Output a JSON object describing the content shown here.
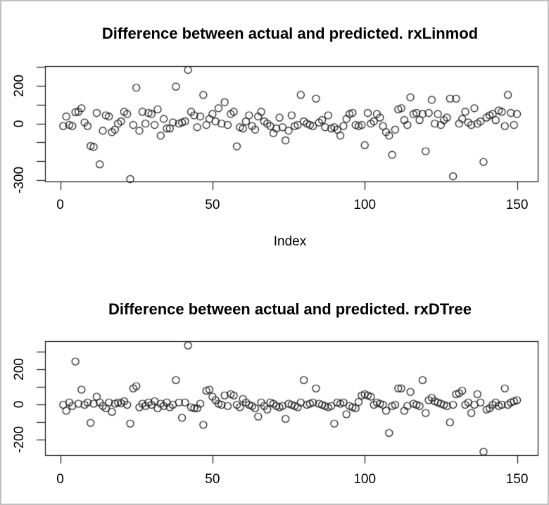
{
  "frame": {
    "background": "#ffffff",
    "border_color": "#c0c0c0",
    "marker_color": "#111111",
    "axis_color": "#000000"
  },
  "chart_data": [
    {
      "type": "scatter",
      "title": "Difference between actual and predicted. rxLinmod",
      "xlabel": "Index",
      "ylabel": "",
      "marker": "open-circle",
      "grid": false,
      "x_note": "x is the observation index 1..150 (array position + 1)",
      "x_ticks": [
        0,
        50,
        100,
        150
      ],
      "y_ticks": [
        300,
        200,
        100,
        0,
        -100,
        -200,
        -300
      ],
      "y_tick_labels_shown": [
        200,
        0,
        -300
      ],
      "xlim": [
        -5,
        157
      ],
      "ylim": [
        -310,
        305
      ],
      "values": [
        -14,
        37,
        -8,
        -14,
        60,
        62,
        81,
        5,
        -14,
        -120,
        -125,
        56,
        -218,
        -39,
        43,
        37,
        -46,
        -33,
        -1,
        11,
        62,
        50,
        -296,
        -8,
        190,
        -39,
        62,
        -1,
        56,
        50,
        -8,
        75,
        -65,
        24,
        -27,
        -27,
        5,
        196,
        -1,
        5,
        11,
        285,
        62,
        43,
        -20,
        37,
        152,
        -8,
        24,
        50,
        11,
        81,
        -1,
        113,
        -8,
        50,
        62,
        -122,
        -20,
        -27,
        11,
        43,
        -14,
        -33,
        37,
        62,
        11,
        -1,
        -14,
        -52,
        -27,
        31,
        -20,
        -90,
        -39,
        43,
        -14,
        -8,
        152,
        11,
        -1,
        -8,
        -14,
        132,
        5,
        18,
        -20,
        43,
        -27,
        -20,
        -33,
        -65,
        -14,
        24,
        50,
        56,
        -8,
        -14,
        -8,
        -116,
        56,
        -1,
        11,
        50,
        31,
        -14,
        -46,
        -65,
        -167,
        -33,
        75,
        81,
        18,
        -8,
        139,
        50,
        56,
        18,
        50,
        -148,
        56,
        126,
        -1,
        50,
        -8,
        18,
        31,
        132,
        -281,
        132,
        -1,
        24,
        62,
        5,
        -8,
        81,
        -1,
        11,
        -205,
        31,
        43,
        50,
        18,
        69,
        62,
        -14,
        152,
        56,
        -8,
        50
      ]
    },
    {
      "type": "scatter",
      "title": "Difference between actual and predicted. rxDTree",
      "xlabel": "",
      "ylabel": "",
      "marker": "open-circle",
      "grid": false,
      "x_note": "x is the observation index 1..150 (array position + 1)",
      "x_ticks": [
        0,
        50,
        100,
        150
      ],
      "y_ticks": [
        300,
        200,
        100,
        0,
        -100,
        -200
      ],
      "y_tick_labels_shown": [
        200,
        0,
        -200
      ],
      "xlim": [
        -5,
        157
      ],
      "ylim": [
        -290,
        360
      ],
      "values": [
        -2,
        -36,
        11,
        -9,
        244,
        4,
        84,
        -2,
        11,
        -105,
        4,
        44,
        11,
        -9,
        -22,
        11,
        -42,
        4,
        11,
        7,
        18,
        -2,
        -109,
        91,
        104,
        -16,
        4,
        -9,
        11,
        -2,
        18,
        -22,
        4,
        -9,
        11,
        -16,
        -2,
        138,
        11,
        -76,
        11,
        335,
        -16,
        -22,
        -22,
        4,
        -116,
        78,
        84,
        44,
        24,
        4,
        -2,
        51,
        -9,
        58,
        51,
        -2,
        -16,
        31,
        11,
        -2,
        -9,
        -22,
        -69,
        11,
        -9,
        -29,
        11,
        4,
        -9,
        -16,
        -9,
        -82,
        4,
        -2,
        -9,
        -16,
        11,
        138,
        -2,
        4,
        11,
        91,
        4,
        -2,
        -9,
        -16,
        -9,
        -109,
        11,
        4,
        11,
        -56,
        -9,
        -16,
        -22,
        14,
        51,
        58,
        51,
        44,
        -2,
        11,
        4,
        -2,
        -36,
        -162,
        -9,
        -2,
        91,
        91,
        -36,
        -9,
        71,
        4,
        -2,
        -9,
        138,
        -49,
        24,
        38,
        18,
        11,
        4,
        -2,
        -9,
        -102,
        -2,
        58,
        64,
        78,
        -2,
        11,
        -49,
        -2,
        58,
        11,
        -269,
        -29,
        -22,
        -2,
        11,
        -9,
        -2,
        91,
        -2,
        11,
        18,
        24
      ]
    }
  ]
}
